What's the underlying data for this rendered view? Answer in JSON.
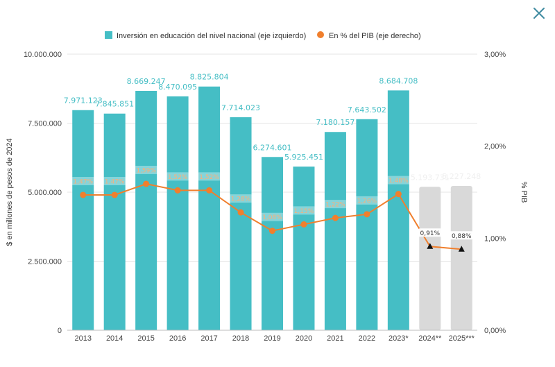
{
  "close_icon": "close-icon",
  "colors": {
    "bar": "#45BEC5",
    "bar_projected": "#D9D9D9",
    "line": "#F07F2D",
    "projected_marker": "#111111",
    "grid": "#E4E4E4",
    "bar_label": "#45BEC5",
    "close": "#3E8AA0"
  },
  "chart_data": {
    "type": "bar",
    "categories": [
      "2013",
      "2014",
      "2015",
      "2016",
      "2017",
      "2018",
      "2019",
      "2020",
      "2021",
      "2022",
      "2023*",
      "2024**",
      "2025***"
    ],
    "series": [
      {
        "name": "Inversión en educación del nivel nacional (eje izquierdo)",
        "type": "bar",
        "axis": "left",
        "values": [
          7971123,
          7845851,
          8669247,
          8470095,
          8825804,
          7714023,
          6274601,
          5925451,
          7180157,
          7643502,
          8684708,
          5193731,
          5227248
        ],
        "value_labels": [
          "7.971.123",
          "7.845.851",
          "8.669.247",
          "8.470.095",
          "8.825.804",
          "7.714.023",
          "6.274.601",
          "5.925.451",
          "7.180.157",
          "7.643.502",
          "8.684.708",
          "5.193.731",
          "5.227.248"
        ],
        "projected": [
          false,
          false,
          false,
          false,
          false,
          false,
          false,
          false,
          false,
          false,
          false,
          true,
          true
        ]
      },
      {
        "name": "En % del PIB (eje derecho)",
        "type": "line",
        "axis": "right",
        "values": [
          1.47,
          1.47,
          1.59,
          1.52,
          1.52,
          1.28,
          1.08,
          1.15,
          1.22,
          1.26,
          1.48,
          0.91,
          0.88
        ],
        "value_labels": [
          "1,47%",
          "1,47%",
          "1,59%",
          "1,52%",
          "1,52%",
          "1,28%",
          "1,08%",
          "1,15%",
          "1,22%",
          "1,26%",
          "1,48%",
          "0,91%",
          "0,88%"
        ],
        "projected": [
          false,
          false,
          false,
          false,
          false,
          false,
          false,
          false,
          false,
          false,
          false,
          true,
          true
        ]
      }
    ],
    "ylabel": "$ en millones de pesos de 2024",
    "y2label": "% PIB",
    "ylim": [
      0,
      10000000
    ],
    "y2lim": [
      0,
      3
    ],
    "yticks": [
      0,
      2500000,
      5000000,
      7500000,
      10000000
    ],
    "ytick_labels": [
      "0",
      "2.500.000",
      "5.000.000",
      "7.500.000",
      "10.000.000"
    ],
    "y2ticks": [
      0,
      1,
      2,
      3
    ],
    "y2tick_labels": [
      "0,00%",
      "1,00%",
      "2,00%",
      "3,00%"
    ],
    "grid": true,
    "legend_position": "top"
  }
}
